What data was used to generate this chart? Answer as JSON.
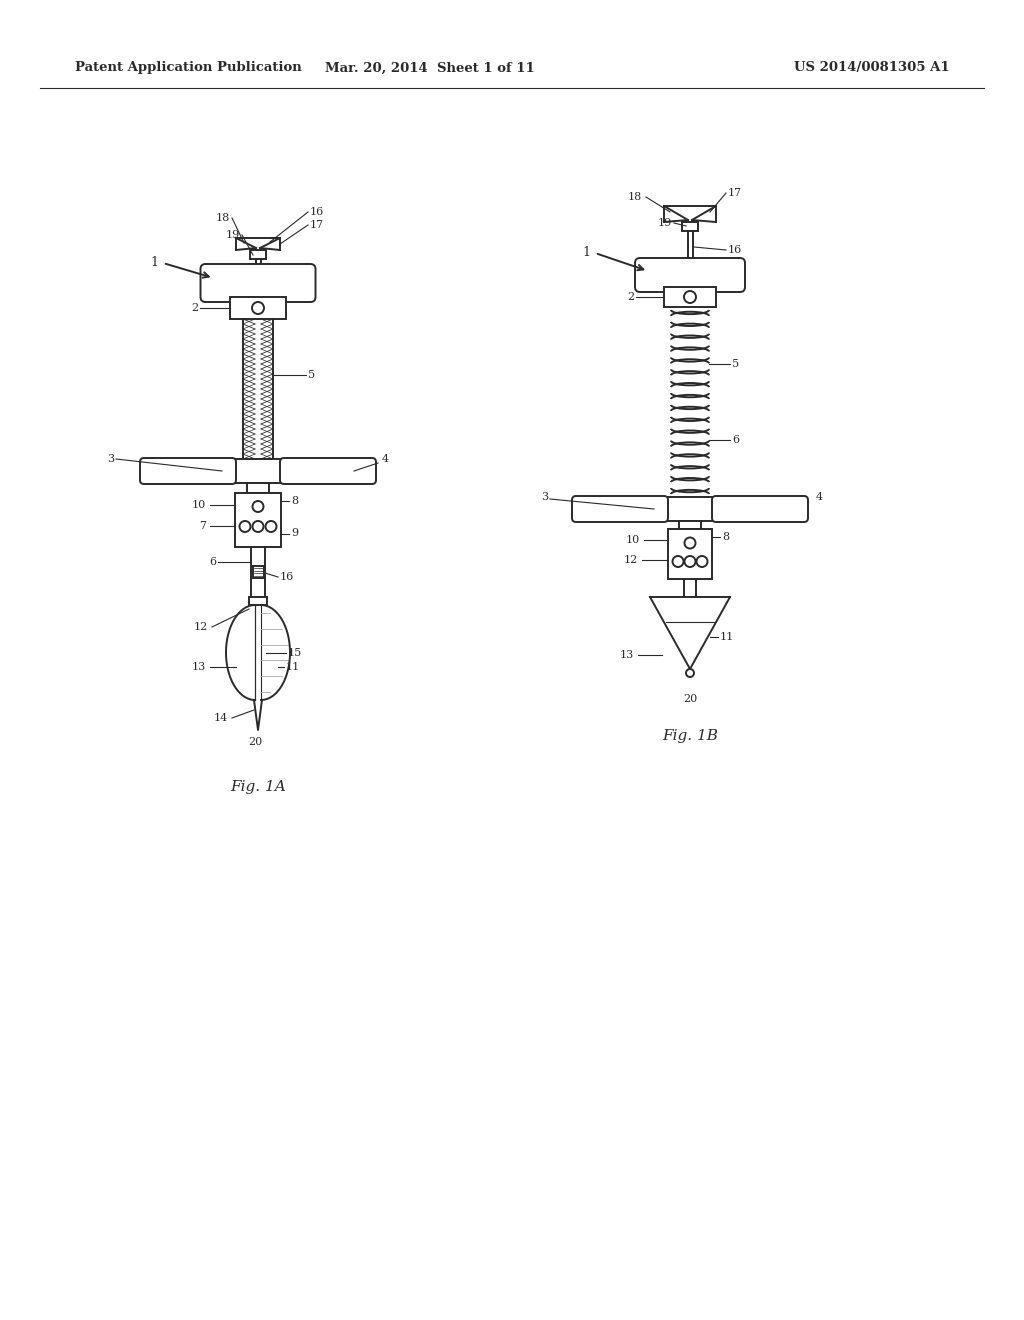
{
  "bg_color": "#ffffff",
  "header_left": "Patent Application Publication",
  "header_mid": "Mar. 20, 2014  Sheet 1 of 11",
  "header_right": "US 2014/0081305 A1",
  "fig1a_label": "Fig. 1A",
  "fig1b_label": "Fig. 1B",
  "line_color": "#2a2a2a",
  "line_width": 1.4,
  "label_fontsize": 8.0,
  "header_fontsize": 9.5
}
